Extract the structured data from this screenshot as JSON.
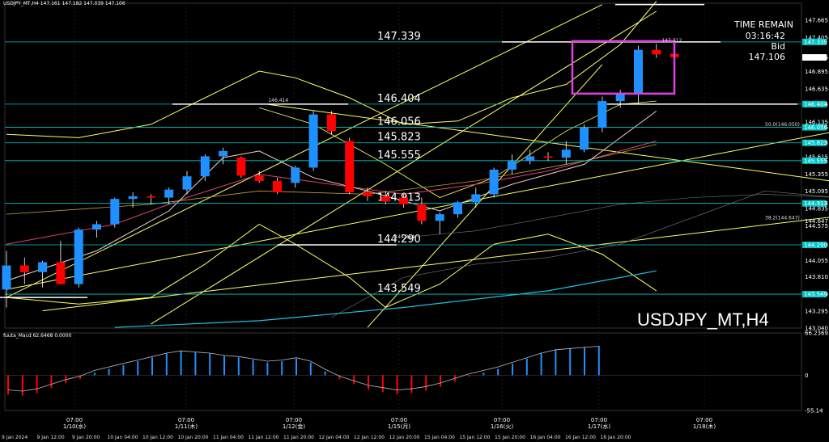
{
  "header": {
    "title": "USDJPY_MT,H4  147.161 147.182 147.039 147.106"
  },
  "symbol_label": "USDJPY_MT,H4",
  "info_box": {
    "label": "TIME REMAIN",
    "time": "03:16:42",
    "bid_label": "Bid",
    "bid": "147.106"
  },
  "macd_label": "fuuta_Macd 62.6468  0.0000",
  "colors": {
    "background": "#000000",
    "bull": "#1e90ff",
    "bear": "#ff0000",
    "level_line": "#00c8c8",
    "trend_line": "#ffff66",
    "magenta_box": "#e040e0"
  },
  "chart_data": [
    {
      "type": "candlestick",
      "ylim": [
        143.04,
        147.92
      ],
      "y_ticks": [
        "147.665",
        "147.405",
        "147.106",
        "146.895",
        "146.635",
        "146.404",
        "146.135",
        "146.056",
        "145.823",
        "145.615",
        "145.555",
        "145.355",
        "145.095",
        "144.913",
        "144.835",
        "144.647",
        "144.575",
        "144.290",
        "144.055",
        "143.810",
        "143.549",
        "143.295",
        "143.040"
      ],
      "x_tick_labels": [
        "9 Jan 2024",
        "9 Jan 12:00",
        "9 Jan 20:00",
        "10 Jan 04:00",
        "10 Jan 12:00",
        "10 Jan 20:00",
        "11 Jan 04:00",
        "11 Jan 12:00",
        "11 Jan 20:00",
        "12 Jan 04:00",
        "12 Jan 12:00",
        "12 Jan 20:00",
        "15 Jan 04:00",
        "15 Jan 12:00",
        "15 Jan 20:00",
        "16 Jan 04:00",
        "16 Jan 12:00",
        "16 Jan 20:00"
      ],
      "sessions": [
        {
          "time": "07:00",
          "date": "1/10(水)"
        },
        {
          "time": "07:00",
          "date": "1/11(木)"
        },
        {
          "time": "07:00",
          "date": "1/12(金)"
        },
        {
          "time": "07:00",
          "date": "1/15(月)"
        },
        {
          "time": "07:00",
          "date": "1/16(火)"
        },
        {
          "time": "07:00",
          "date": "1/17(水)"
        },
        {
          "time": "07:00",
          "date": "1/18(木)"
        }
      ],
      "candles": [
        {
          "o": 143.62,
          "h": 144.2,
          "l": 143.35,
          "c": 143.98
        },
        {
          "o": 143.98,
          "h": 144.1,
          "l": 143.7,
          "c": 143.88
        },
        {
          "o": 143.88,
          "h": 144.05,
          "l": 143.65,
          "c": 144.03
        },
        {
          "o": 144.03,
          "h": 144.35,
          "l": 143.7,
          "c": 143.7
        },
        {
          "o": 143.7,
          "h": 144.55,
          "l": 143.65,
          "c": 144.52
        },
        {
          "o": 144.52,
          "h": 144.65,
          "l": 144.4,
          "c": 144.6
        },
        {
          "o": 144.6,
          "h": 145.0,
          "l": 144.55,
          "c": 144.98
        },
        {
          "o": 144.98,
          "h": 145.08,
          "l": 144.85,
          "c": 145.02
        },
        {
          "o": 145.02,
          "h": 145.05,
          "l": 144.9,
          "c": 145.0
        },
        {
          "o": 145.0,
          "h": 145.15,
          "l": 144.9,
          "c": 145.12
        },
        {
          "o": 145.12,
          "h": 145.4,
          "l": 145.05,
          "c": 145.32
        },
        {
          "o": 145.32,
          "h": 145.65,
          "l": 145.25,
          "c": 145.62
        },
        {
          "o": 145.62,
          "h": 145.75,
          "l": 145.5,
          "c": 145.7
        },
        {
          "o": 145.6,
          "h": 145.62,
          "l": 145.3,
          "c": 145.33
        },
        {
          "o": 145.33,
          "h": 145.4,
          "l": 145.22,
          "c": 145.25
        },
        {
          "o": 145.25,
          "h": 145.3,
          "l": 145.05,
          "c": 145.08
        },
        {
          "o": 145.22,
          "h": 145.48,
          "l": 145.15,
          "c": 145.45
        },
        {
          "o": 145.45,
          "h": 146.3,
          "l": 145.4,
          "c": 146.25
        },
        {
          "o": 146.25,
          "h": 146.3,
          "l": 145.95,
          "c": 146.0
        },
        {
          "o": 145.85,
          "h": 145.9,
          "l": 145.05,
          "c": 145.08
        },
        {
          "o": 145.08,
          "h": 145.15,
          "l": 144.95,
          "c": 145.02
        },
        {
          "o": 145.02,
          "h": 145.1,
          "l": 144.9,
          "c": 144.94
        },
        {
          "o": 145.0,
          "h": 145.05,
          "l": 144.85,
          "c": 144.9
        },
        {
          "o": 144.9,
          "h": 145.0,
          "l": 144.6,
          "c": 144.65
        },
        {
          "o": 144.65,
          "h": 144.78,
          "l": 144.45,
          "c": 144.75
        },
        {
          "o": 144.75,
          "h": 144.95,
          "l": 144.7,
          "c": 144.93
        },
        {
          "o": 144.93,
          "h": 145.15,
          "l": 144.85,
          "c": 145.05
        },
        {
          "o": 145.05,
          "h": 145.45,
          "l": 145.0,
          "c": 145.42
        },
        {
          "o": 145.42,
          "h": 145.65,
          "l": 145.35,
          "c": 145.55
        },
        {
          "o": 145.55,
          "h": 145.72,
          "l": 145.5,
          "c": 145.62
        },
        {
          "o": 145.62,
          "h": 145.68,
          "l": 145.55,
          "c": 145.6
        },
        {
          "o": 145.6,
          "h": 145.85,
          "l": 145.5,
          "c": 145.72
        },
        {
          "o": 145.72,
          "h": 146.1,
          "l": 145.68,
          "c": 146.05
        },
        {
          "o": 146.05,
          "h": 146.52,
          "l": 145.98,
          "c": 146.45
        },
        {
          "o": 146.45,
          "h": 146.62,
          "l": 146.35,
          "c": 146.55
        },
        {
          "o": 146.55,
          "h": 147.28,
          "l": 146.4,
          "c": 147.22
        },
        {
          "o": 147.22,
          "h": 147.31,
          "l": 147.1,
          "c": 147.15
        },
        {
          "o": 147.16,
          "h": 147.18,
          "l": 147.04,
          "c": 147.11
        }
      ],
      "levels": [
        {
          "value": 147.339,
          "label": "147.339"
        },
        {
          "value": 146.404,
          "label": "146.404"
        },
        {
          "value": 146.056,
          "label": "146.056"
        },
        {
          "value": 145.823,
          "label": "145.823"
        },
        {
          "value": 145.555,
          "label": "145.555"
        },
        {
          "value": 144.913,
          "label": "144.913"
        },
        {
          "value": 144.29,
          "label": "144.290"
        },
        {
          "value": 143.549,
          "label": "143.549"
        }
      ],
      "small_annotations": [
        {
          "text": "146.414",
          "x_index": 14.5,
          "value": 146.414
        },
        {
          "text": "144.364",
          "x_index": 21.5,
          "value": 144.364
        },
        {
          "text": "147.312",
          "x_index": 36.3,
          "value": 147.312
        },
        {
          "text": "50.0(146.050)",
          "x_index": 47.5,
          "value": 146.05
        },
        {
          "text": "38.2(144.647)",
          "x_index": 47.5,
          "value": 144.647
        }
      ],
      "annotations": [
        "TIME REMAIN",
        "03:16:42",
        "Bid",
        "147.106"
      ]
    },
    {
      "type": "bar",
      "name": "fuuta_Macd",
      "values": [
        62.6468,
        0.0
      ],
      "ylim": [
        -55.14,
        66.2369
      ],
      "y_ticks": [
        "66.2369",
        "0",
        "-55.14"
      ],
      "histogram": [
        -30,
        -32,
        -28,
        -20,
        -12,
        -6,
        4,
        10,
        16,
        22,
        28,
        34,
        38,
        36,
        34,
        30,
        28,
        24,
        20,
        22,
        26,
        20,
        6,
        -6,
        -14,
        -22,
        -26,
        -30,
        -28,
        -24,
        -18,
        -10,
        -2,
        4,
        10,
        18,
        26,
        34,
        40,
        42,
        44,
        46
      ]
    }
  ]
}
